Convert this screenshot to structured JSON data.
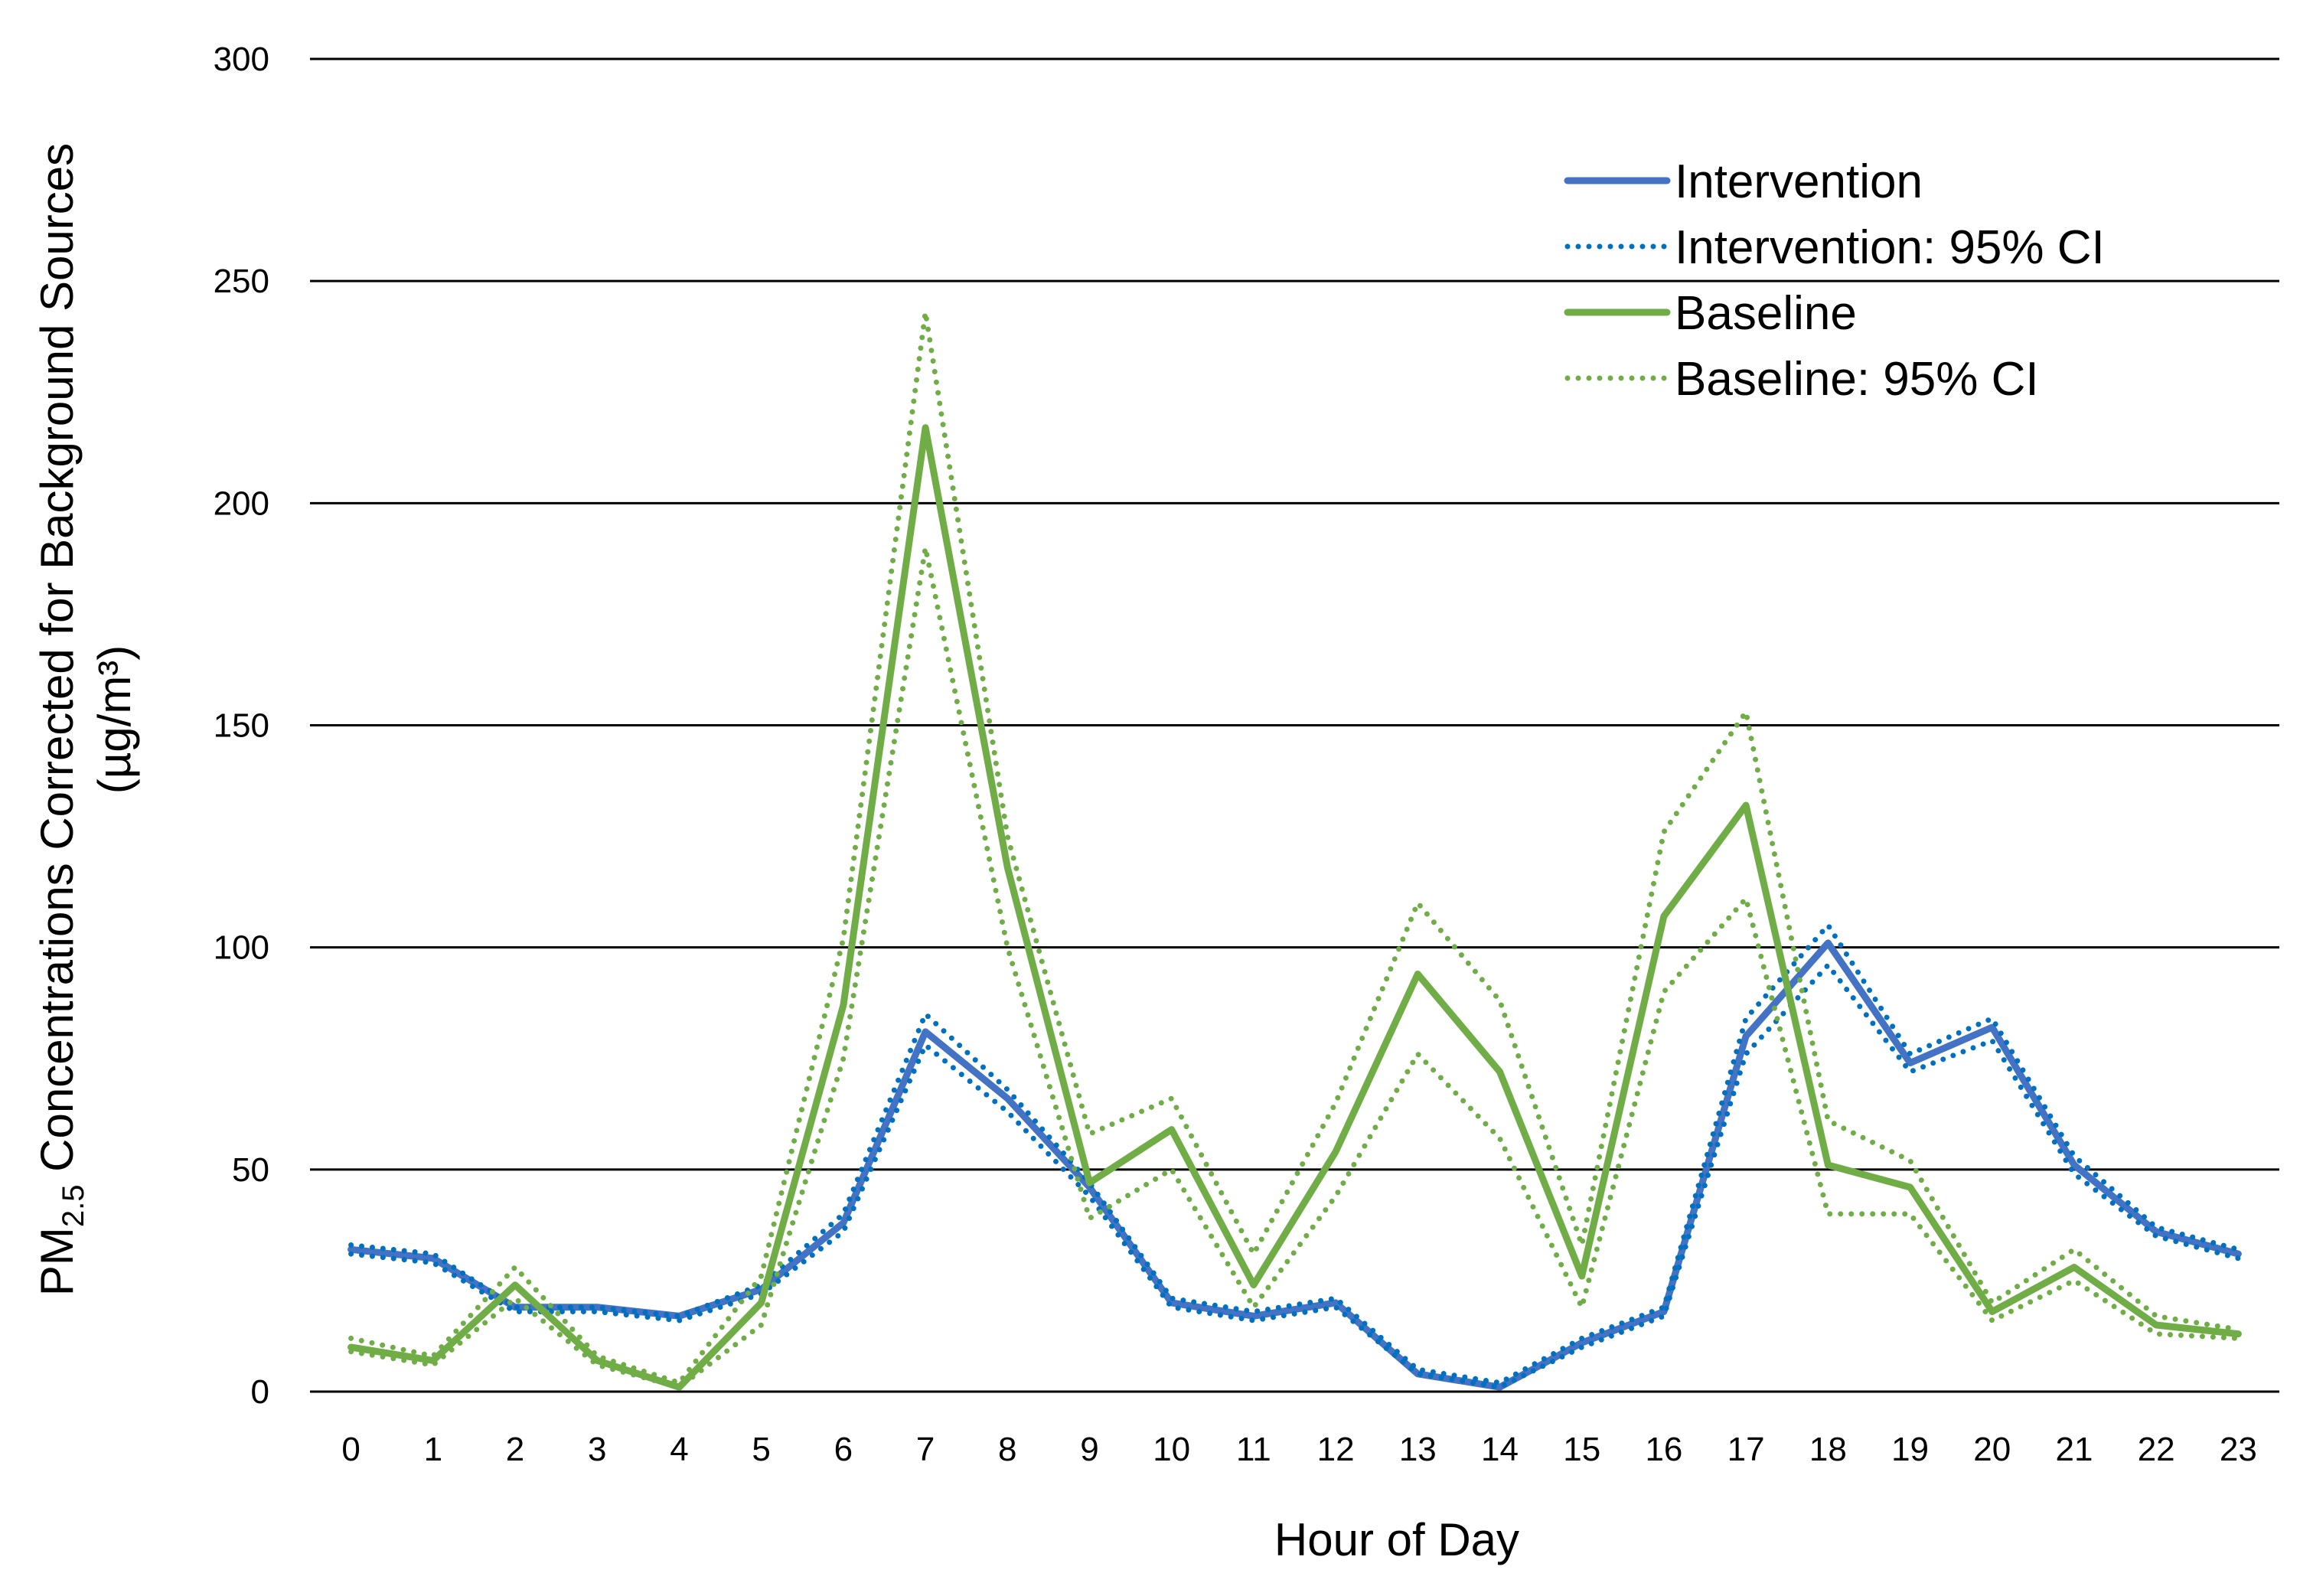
{
  "chart_data": {
    "type": "line",
    "x": [
      0,
      1,
      2,
      3,
      4,
      5,
      6,
      7,
      8,
      9,
      10,
      11,
      12,
      13,
      14,
      15,
      16,
      17,
      18,
      19,
      20,
      21,
      22,
      23
    ],
    "xlabel": "Hour of Day",
    "ylabel": {
      "main": "PM",
      "sub": "2.5",
      "rest": " Concentrations Corrected for Background Sources",
      "unit": "(µg/m³)"
    },
    "ylim": [
      0,
      300
    ],
    "yticks": [
      0,
      50,
      100,
      150,
      200,
      250,
      300
    ],
    "grid": "horizontal",
    "legend_position": "top-right",
    "series": [
      {
        "name": "Intervention",
        "style": "solid",
        "color": "#4472C4",
        "values": [
          32,
          30,
          19,
          19,
          17,
          23,
          38,
          81,
          66,
          46,
          20,
          17,
          20,
          4,
          1,
          11,
          18,
          80,
          101,
          74,
          82,
          51,
          36,
          31
        ]
      },
      {
        "name": "Intervention: 95% CI",
        "style": "dotted",
        "color": "#0070C0",
        "bands": [
          [
            33,
            31,
            19,
            19,
            17,
            24,
            40,
            85,
            68,
            47,
            21,
            18,
            21,
            5,
            2,
            12,
            19,
            84,
            105,
            76,
            84,
            53,
            37,
            32
          ],
          [
            31,
            29,
            18,
            18,
            16,
            22,
            36,
            78,
            63,
            44,
            19,
            16,
            19,
            4,
            1,
            10,
            17,
            76,
            96,
            72,
            79,
            49,
            35,
            30
          ]
        ]
      },
      {
        "name": "Baseline",
        "style": "solid",
        "color": "#70AD47",
        "values": [
          10,
          7,
          24,
          7,
          1,
          20,
          87,
          217,
          118,
          47,
          59,
          24,
          54,
          94,
          72,
          26,
          107,
          132,
          51,
          46,
          18,
          28,
          15,
          13
        ]
      },
      {
        "name": "Baseline: 95% CI",
        "style": "dotted",
        "color": "#70AD47",
        "bands": [
          [
            12,
            8,
            28,
            8,
            2,
            26,
            102,
            243,
            125,
            58,
            66,
            31,
            65,
            110,
            88,
            33,
            126,
            153,
            61,
            52,
            20,
            32,
            17,
            14
          ],
          [
            9,
            6,
            21,
            6,
            1,
            15,
            75,
            190,
            100,
            39,
            50,
            19,
            44,
            76,
            57,
            19,
            90,
            111,
            40,
            40,
            16,
            25,
            13,
            12
          ]
        ]
      }
    ]
  }
}
